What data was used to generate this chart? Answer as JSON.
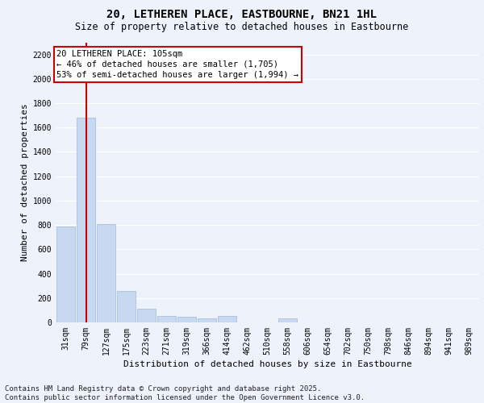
{
  "title_line1": "20, LETHEREN PLACE, EASTBOURNE, BN21 1HL",
  "title_line2": "Size of property relative to detached houses in Eastbourne",
  "xlabel": "Distribution of detached houses by size in Eastbourne",
  "ylabel": "Number of detached properties",
  "categories": [
    "31sqm",
    "79sqm",
    "127sqm",
    "175sqm",
    "223sqm",
    "271sqm",
    "319sqm",
    "366sqm",
    "414sqm",
    "462sqm",
    "510sqm",
    "558sqm",
    "606sqm",
    "654sqm",
    "702sqm",
    "750sqm",
    "798sqm",
    "846sqm",
    "894sqm",
    "941sqm",
    "989sqm"
  ],
  "values": [
    790,
    1680,
    810,
    260,
    115,
    50,
    45,
    30,
    50,
    0,
    0,
    30,
    0,
    0,
    0,
    0,
    0,
    0,
    0,
    0,
    0
  ],
  "bar_color": "#c7d9f0",
  "bar_edge_color": "#a0b8d8",
  "ylim": [
    0,
    2300
  ],
  "yticks": [
    0,
    200,
    400,
    600,
    800,
    1000,
    1200,
    1400,
    1600,
    1800,
    2000,
    2200
  ],
  "vline_x": 1.0,
  "vline_color": "#cc0000",
  "annotation_box_text": "20 LETHEREN PLACE: 105sqm\n← 46% of detached houses are smaller (1,705)\n53% of semi-detached houses are larger (1,994) →",
  "footnote": "Contains HM Land Registry data © Crown copyright and database right 2025.\nContains public sector information licensed under the Open Government Licence v3.0.",
  "bg_color": "#eef2fa",
  "plot_bg_color": "#eef2fa",
  "grid_color": "#ffffff",
  "title_fontsize": 10,
  "subtitle_fontsize": 8.5,
  "tick_fontsize": 7,
  "label_fontsize": 8,
  "footnote_fontsize": 6.5,
  "ann_fontsize": 7.5
}
